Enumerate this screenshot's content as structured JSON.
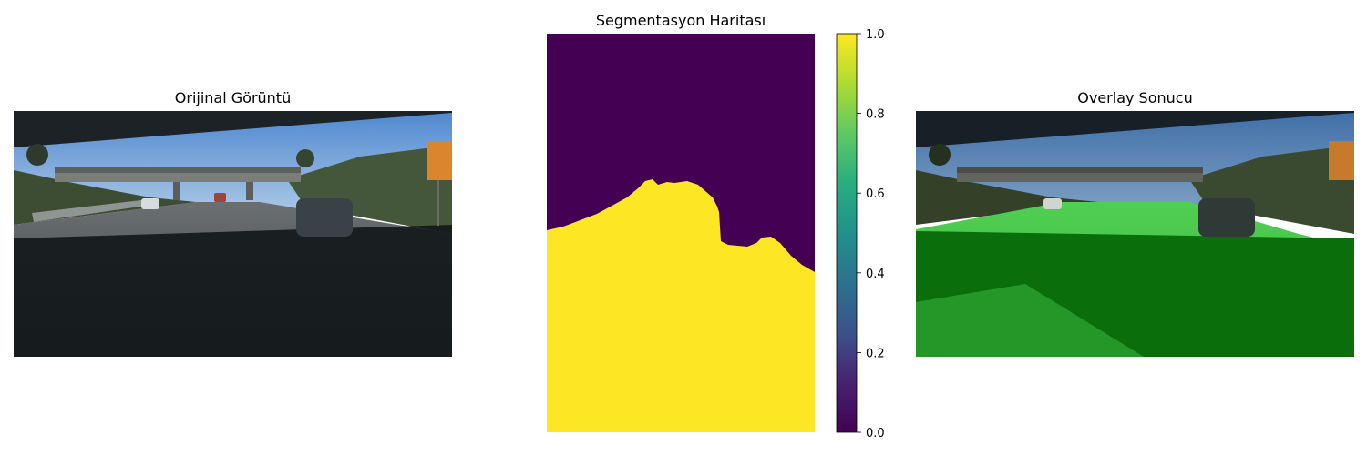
{
  "figure": {
    "panels": [
      {
        "title": "Orijinal Görüntü"
      },
      {
        "title": "Segmentasyon Haritası"
      },
      {
        "title": "Overlay Sonucu"
      }
    ]
  },
  "chart_data": {
    "type": "heatmap",
    "title": "Segmentasyon Haritası",
    "colormap": "viridis",
    "colorbar": {
      "ticks": [
        "0.0",
        "0.2",
        "0.4",
        "0.6",
        "0.8",
        "1.0"
      ],
      "range": [
        0.0,
        1.0
      ]
    },
    "classes": [
      {
        "value": 0.0,
        "color": "#440154"
      },
      {
        "value": 1.0,
        "color": "#fde725"
      }
    ]
  },
  "colors": {
    "sky_top": "#5e94d6",
    "sky_bottom": "#9bbde0",
    "road": "#2a2f33",
    "shadow": "#121719",
    "vegetation": "#3e4f2f",
    "overlay_green": "#0a8a0a",
    "overlay_green_light": "#4fcf52"
  },
  "icons": {
    "panel1": "road-scene-image",
    "panel3": "road-overlay-image"
  }
}
